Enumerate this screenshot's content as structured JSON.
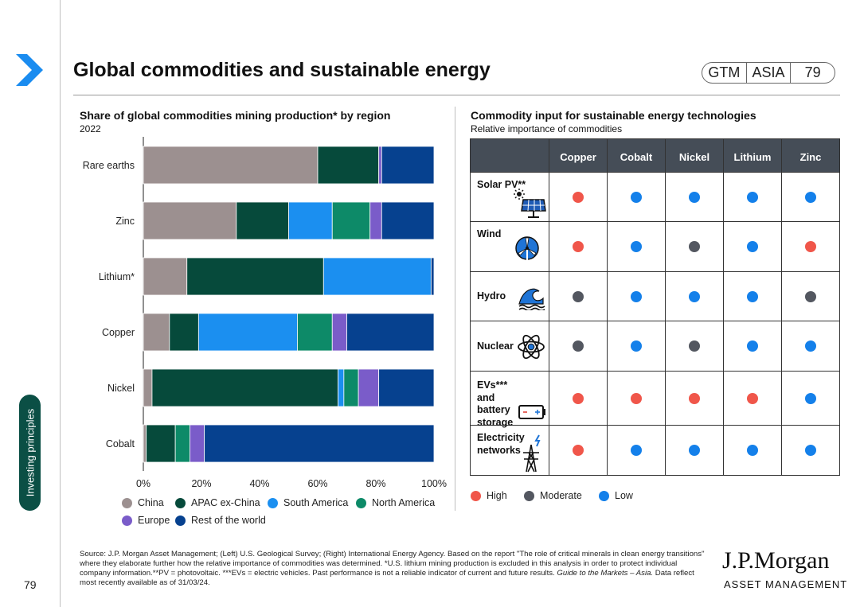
{
  "header": {
    "title": "Global commodities and sustainable energy",
    "badge": [
      "GTM",
      "ASIA",
      "79"
    ]
  },
  "side_tab": "Investing principles",
  "page_number": "79",
  "colors": {
    "China": "#9c9090",
    "APAC ex-China": "#064a3b",
    "South America": "#1b8ff0",
    "North America": "#0d8a68",
    "Europe": "#7a5cc9",
    "Rest of the world": "#06418f",
    "High": "#f0564a",
    "Moderate": "#535760",
    "Low": "#1480ea"
  },
  "chart_data": {
    "type": "bar",
    "orientation": "horizontal-stacked-100",
    "title": "Share of global commodities mining production* by region",
    "subtitle": "2022",
    "categories": [
      "Rare earths",
      "Zinc",
      "Lithium*",
      "Copper",
      "Nickel",
      "Cobalt"
    ],
    "series": [
      {
        "name": "China",
        "values": [
          60,
          32,
          15,
          9,
          3,
          1
        ]
      },
      {
        "name": "APAC ex-China",
        "values": [
          21,
          18,
          47,
          10,
          64,
          10
        ]
      },
      {
        "name": "South America",
        "values": [
          0,
          15,
          37,
          34,
          2,
          0
        ]
      },
      {
        "name": "North America",
        "values": [
          0,
          13,
          0,
          12,
          5,
          5
        ]
      },
      {
        "name": "Europe",
        "values": [
          1,
          4,
          0,
          5,
          7,
          5
        ]
      },
      {
        "name": "Rest of the world",
        "values": [
          18,
          18,
          1,
          30,
          19,
          79
        ]
      }
    ],
    "xlim": [
      0,
      100
    ],
    "xticks": [
      "0%",
      "20%",
      "40%",
      "60%",
      "80%",
      "100%"
    ],
    "legend": [
      "China",
      "APAC ex-China",
      "South America",
      "North America",
      "Europe",
      "Rest of the world"
    ]
  },
  "matrix": {
    "title": "Commodity input for sustainable energy technologies",
    "subtitle": "Relative importance of commodities",
    "columns": [
      "Copper",
      "Cobalt",
      "Nickel",
      "Lithium",
      "Zinc"
    ],
    "rows": [
      {
        "label": "Solar PV**",
        "icon": "solar-panel-icon",
        "values": [
          "High",
          "Low",
          "Low",
          "Low",
          "Low"
        ]
      },
      {
        "label": "Wind",
        "icon": "wind-turbine-icon",
        "values": [
          "High",
          "Low",
          "Moderate",
          "Low",
          "High"
        ]
      },
      {
        "label": "Hydro",
        "icon": "wave-icon",
        "values": [
          "Moderate",
          "Low",
          "Low",
          "Low",
          "Moderate"
        ]
      },
      {
        "label": "Nuclear",
        "icon": "atom-icon",
        "values": [
          "Moderate",
          "Low",
          "Moderate",
          "Low",
          "Low"
        ]
      },
      {
        "label": "EVs***  and battery storage",
        "icon": "battery-icon",
        "values": [
          "High",
          "High",
          "High",
          "High",
          "Low"
        ]
      },
      {
        "label": "Electricity networks",
        "icon": "pylon-icon",
        "values": [
          "High",
          "Low",
          "Low",
          "Low",
          "Low"
        ]
      }
    ],
    "legend": [
      "High",
      "Moderate",
      "Low"
    ]
  },
  "footer": {
    "source": "Source: J.P. Morgan Asset Management; (Left) U.S. Geological Survey; (Right) International Energy Agency. Based on the report \"The role of critical minerals in clean energy transitions\" where they elaborate further how the relative importance of commodities was determined. *U.S. lithium mining production is excluded in this analysis in order to protect individual company information.**PV = photovoltaic. ***EVs = electric vehicles. Past performance is not a reliable indicator of current and future results.",
    "source_italic": "Guide to the Markets – Asia.",
    "source_tail": " Data reflect most recently available as of 31/03/24.",
    "logo_main": "J.P.Morgan",
    "logo_sub": "ASSET MANAGEMENT"
  }
}
